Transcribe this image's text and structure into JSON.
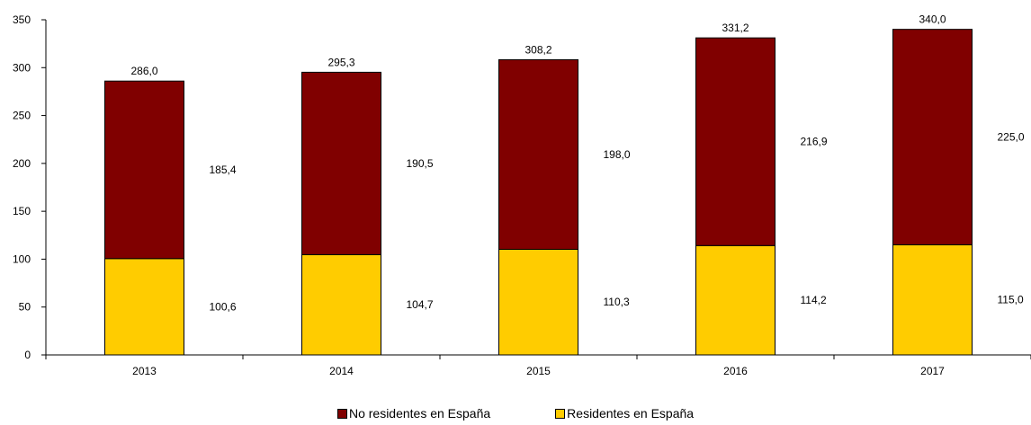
{
  "chart_data": {
    "type": "bar",
    "stacked": true,
    "categories": [
      "2013",
      "2014",
      "2015",
      "2016",
      "2017"
    ],
    "series": [
      {
        "name": "Residentes en España",
        "color": "#FFCC00",
        "values": [
          100.6,
          104.7,
          110.3,
          114.2,
          115.0
        ],
        "labels": [
          "100,6",
          "104,7",
          "110,3",
          "114,2",
          "115,0"
        ]
      },
      {
        "name": "No residentes en España",
        "color": "#800000",
        "values": [
          185.4,
          190.5,
          198.0,
          216.9,
          225.0
        ],
        "labels": [
          "185,4",
          "190,5",
          "198,0",
          "216,9",
          "225,0"
        ]
      }
    ],
    "totals": [
      286.0,
      295.3,
      308.2,
      331.2,
      340.0
    ],
    "total_labels": [
      "286,0",
      "295,3",
      "308,2",
      "331,2",
      "340,0"
    ],
    "ylim": [
      0,
      350
    ],
    "yticks": [
      0,
      50,
      100,
      150,
      200,
      250,
      300,
      350
    ],
    "grid": false,
    "legend": {
      "placement": "bottom",
      "order": [
        "No residentes en España",
        "Residentes en España"
      ]
    }
  }
}
